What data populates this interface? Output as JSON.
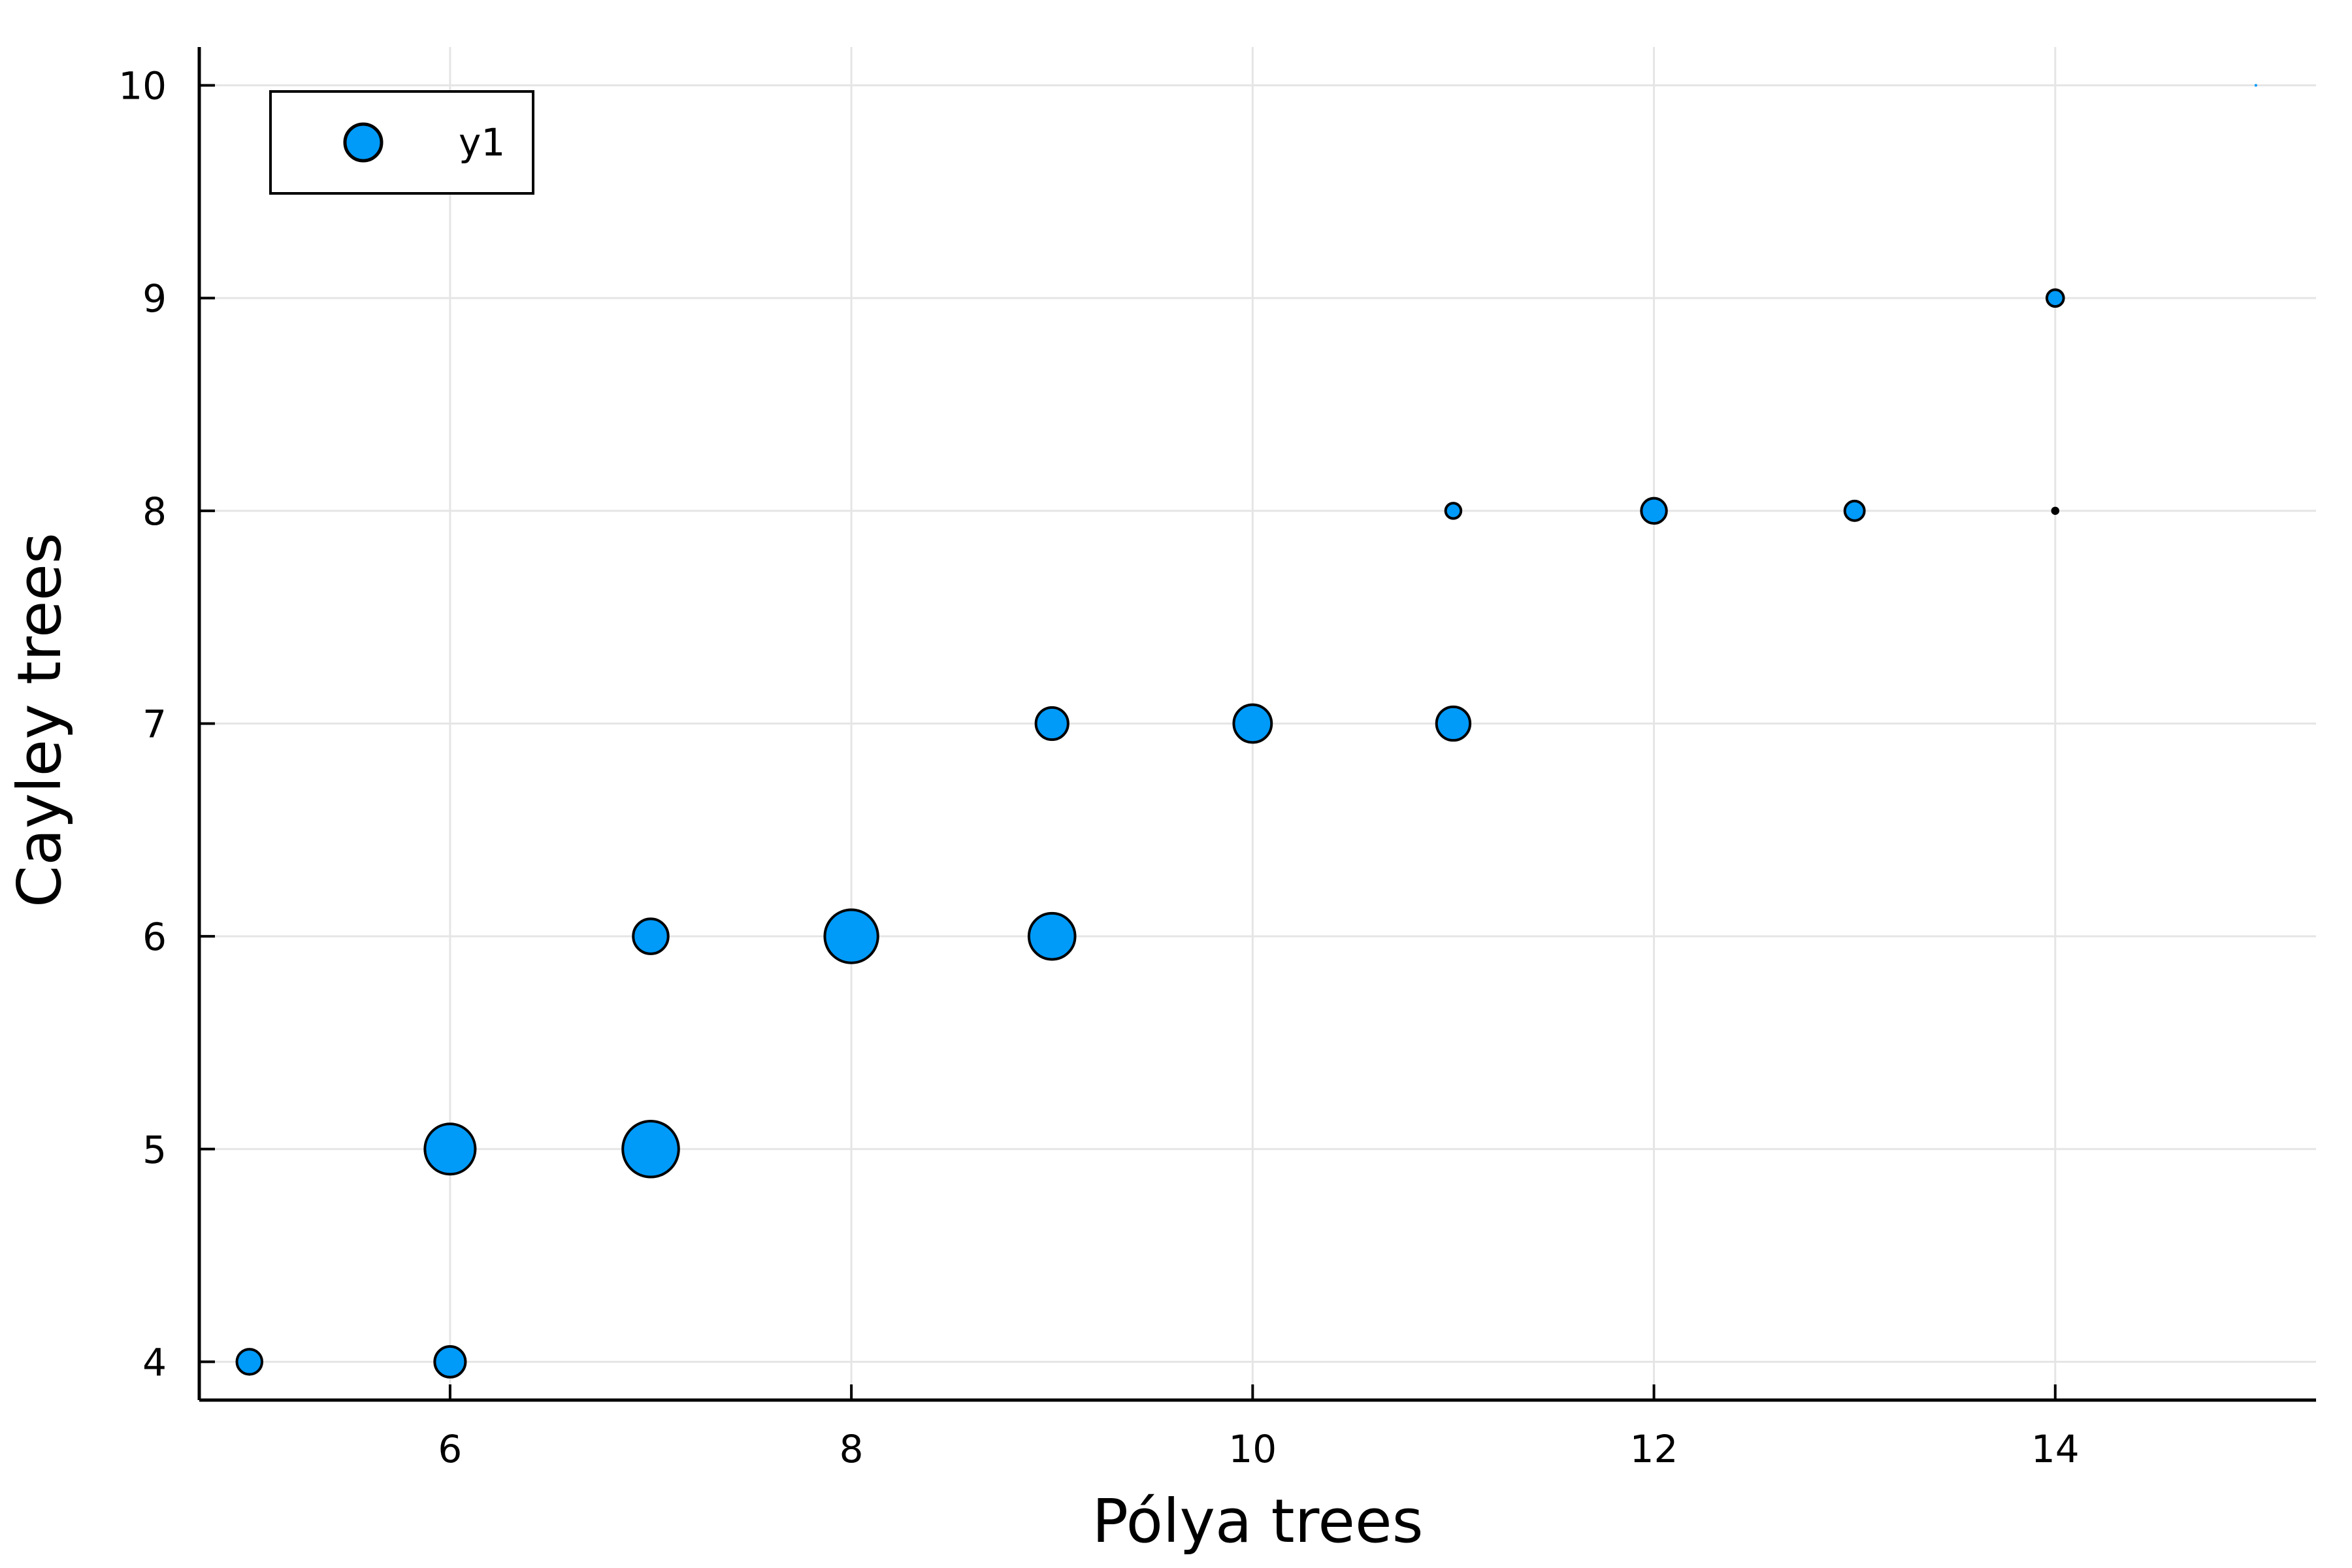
{
  "chart_data": {
    "type": "scatter",
    "xlabel": "Pólya trees",
    "ylabel": "Cayley trees",
    "xlim": [
      4.75,
      15.3
    ],
    "ylim": [
      3.82,
      10.18
    ],
    "x_ticks": [
      6,
      8,
      10,
      12,
      14
    ],
    "y_ticks": [
      4,
      5,
      6,
      7,
      8,
      9,
      10
    ],
    "grid": true,
    "legend_position": "top-left",
    "series": [
      {
        "name": "y1",
        "color": "#009AF9",
        "points": [
          {
            "x": 5,
            "y": 4,
            "size": 18
          },
          {
            "x": 6,
            "y": 4,
            "size": 22
          },
          {
            "x": 6,
            "y": 5,
            "size": 36
          },
          {
            "x": 7,
            "y": 5,
            "size": 40
          },
          {
            "x": 7,
            "y": 6,
            "size": 25
          },
          {
            "x": 8,
            "y": 6,
            "size": 38
          },
          {
            "x": 9,
            "y": 6,
            "size": 33
          },
          {
            "x": 9,
            "y": 7,
            "size": 23
          },
          {
            "x": 10,
            "y": 7,
            "size": 27
          },
          {
            "x": 11,
            "y": 7,
            "size": 24
          },
          {
            "x": 11,
            "y": 8,
            "size": 11
          },
          {
            "x": 12,
            "y": 8,
            "size": 18
          },
          {
            "x": 13,
            "y": 8,
            "size": 14
          },
          {
            "x": 14,
            "y": 8,
            "size": 4
          },
          {
            "x": 14,
            "y": 9,
            "size": 12
          },
          {
            "x": 15,
            "y": 10,
            "size": 1
          }
        ]
      }
    ]
  }
}
